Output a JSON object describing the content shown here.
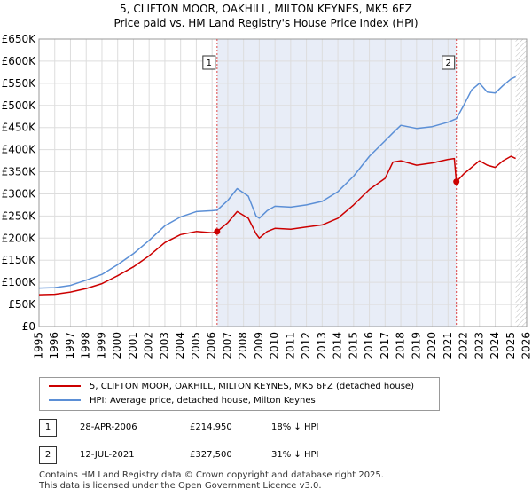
{
  "title": {
    "line1": "5, CLIFTON MOOR, OAKHILL, MILTON KEYNES, MK5 6FZ",
    "line2": "Price paid vs. HM Land Registry's House Price Index (HPI)"
  },
  "legend": {
    "property": "5, CLIFTON MOOR, OAKHILL, MILTON KEYNES, MK5 6FZ (detached house)",
    "hpi": "HPI: Average price, detached house, Milton Keynes"
  },
  "transactions": [
    {
      "label": "1",
      "date": "28-APR-2006",
      "price": "£214,950",
      "hpi_diff": "18% ↓ HPI"
    },
    {
      "label": "2",
      "date": "12-JUL-2021",
      "price": "£327,500",
      "hpi_diff": "31% ↓ HPI"
    }
  ],
  "footer": {
    "line1": "Contains HM Land Registry data © Crown copyright and database right 2025.",
    "line2": "This data is licensed under the Open Government Licence v3.0."
  },
  "chart_data": {
    "type": "line",
    "title": "Price paid vs. HM Land Registry's House Price Index (HPI)",
    "xlim": [
      1995,
      2026
    ],
    "ylim": [
      0,
      650000
    ],
    "x_ticks": [
      1995,
      1996,
      1997,
      1998,
      1999,
      2000,
      2001,
      2002,
      2003,
      2004,
      2005,
      2006,
      2007,
      2008,
      2009,
      2010,
      2011,
      2012,
      2013,
      2014,
      2015,
      2016,
      2017,
      2018,
      2019,
      2020,
      2021,
      2022,
      2023,
      2024,
      2025,
      2026
    ],
    "y_ticks": [
      {
        "value": 0,
        "label": "£0"
      },
      {
        "value": 50000,
        "label": "£50K"
      },
      {
        "value": 100000,
        "label": "£100K"
      },
      {
        "value": 150000,
        "label": "£150K"
      },
      {
        "value": 200000,
        "label": "£200K"
      },
      {
        "value": 250000,
        "label": "£250K"
      },
      {
        "value": 300000,
        "label": "£300K"
      },
      {
        "value": 350000,
        "label": "£350K"
      },
      {
        "value": 400000,
        "label": "£400K"
      },
      {
        "value": 450000,
        "label": "£450K"
      },
      {
        "value": 500000,
        "label": "£500K"
      },
      {
        "value": 550000,
        "label": "£550K"
      },
      {
        "value": 600000,
        "label": "£600K"
      },
      {
        "value": 650000,
        "label": "£650K"
      }
    ],
    "shaded_period": [
      2006.32,
      2021.53
    ],
    "series": [
      {
        "name": "5, CLIFTON MOOR, OAKHILL, MILTON KEYNES, MK5 6FZ (detached house)",
        "color": "#cc0000",
        "points": [
          [
            1995.0,
            72000
          ],
          [
            1996.0,
            73000
          ],
          [
            1997.0,
            78000
          ],
          [
            1998.0,
            86000
          ],
          [
            1999.0,
            97000
          ],
          [
            2000.0,
            115000
          ],
          [
            2001.0,
            135000
          ],
          [
            2002.0,
            160000
          ],
          [
            2003.0,
            190000
          ],
          [
            2004.0,
            208000
          ],
          [
            2005.0,
            215000
          ],
          [
            2006.0,
            212000
          ],
          [
            2006.32,
            214950
          ],
          [
            2007.0,
            235000
          ],
          [
            2007.6,
            260000
          ],
          [
            2008.3,
            245000
          ],
          [
            2008.8,
            210000
          ],
          [
            2009.0,
            200000
          ],
          [
            2009.5,
            215000
          ],
          [
            2010.0,
            222000
          ],
          [
            2011.0,
            220000
          ],
          [
            2012.0,
            225000
          ],
          [
            2013.0,
            230000
          ],
          [
            2014.0,
            245000
          ],
          [
            2015.0,
            275000
          ],
          [
            2016.0,
            310000
          ],
          [
            2017.0,
            335000
          ],
          [
            2017.5,
            372000
          ],
          [
            2018.0,
            375000
          ],
          [
            2019.0,
            365000
          ],
          [
            2020.0,
            370000
          ],
          [
            2021.0,
            378000
          ],
          [
            2021.4,
            380000
          ],
          [
            2021.53,
            327500
          ],
          [
            2022.0,
            345000
          ],
          [
            2022.5,
            360000
          ],
          [
            2023.0,
            375000
          ],
          [
            2023.5,
            365000
          ],
          [
            2024.0,
            360000
          ],
          [
            2024.5,
            375000
          ],
          [
            2025.0,
            385000
          ],
          [
            2025.3,
            380000
          ]
        ]
      },
      {
        "name": "HPI: Average price, detached house, Milton Keynes",
        "color": "#5b8fd6",
        "points": [
          [
            1995.0,
            87000
          ],
          [
            1996.0,
            88000
          ],
          [
            1997.0,
            93000
          ],
          [
            1998.0,
            105000
          ],
          [
            1999.0,
            118000
          ],
          [
            2000.0,
            140000
          ],
          [
            2001.0,
            165000
          ],
          [
            2002.0,
            195000
          ],
          [
            2003.0,
            228000
          ],
          [
            2004.0,
            248000
          ],
          [
            2005.0,
            260000
          ],
          [
            2006.0,
            262000
          ],
          [
            2006.32,
            263000
          ],
          [
            2007.0,
            285000
          ],
          [
            2007.6,
            312000
          ],
          [
            2008.3,
            295000
          ],
          [
            2008.8,
            250000
          ],
          [
            2009.0,
            245000
          ],
          [
            2009.5,
            262000
          ],
          [
            2010.0,
            272000
          ],
          [
            2011.0,
            270000
          ],
          [
            2012.0,
            275000
          ],
          [
            2013.0,
            283000
          ],
          [
            2014.0,
            305000
          ],
          [
            2015.0,
            340000
          ],
          [
            2016.0,
            385000
          ],
          [
            2017.0,
            420000
          ],
          [
            2017.5,
            438000
          ],
          [
            2018.0,
            455000
          ],
          [
            2019.0,
            448000
          ],
          [
            2020.0,
            452000
          ],
          [
            2021.0,
            462000
          ],
          [
            2021.53,
            470000
          ],
          [
            2022.0,
            500000
          ],
          [
            2022.5,
            535000
          ],
          [
            2023.0,
            550000
          ],
          [
            2023.5,
            530000
          ],
          [
            2024.0,
            528000
          ],
          [
            2024.5,
            545000
          ],
          [
            2025.0,
            560000
          ],
          [
            2025.3,
            565000
          ]
        ]
      }
    ],
    "markers": [
      {
        "label": "1",
        "x": 2006.32,
        "y": 214950
      },
      {
        "label": "2",
        "x": 2021.53,
        "y": 327500
      }
    ]
  }
}
